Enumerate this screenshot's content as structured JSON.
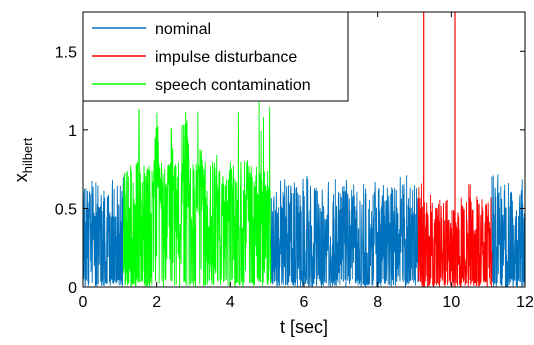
{
  "chart_data": {
    "type": "line",
    "title": "",
    "xlabel": "t [sec]",
    "ylabel": "x",
    "ylabel_subscript": "hilbert",
    "xlim": [
      0,
      12
    ],
    "ylim": [
      0,
      1.75
    ],
    "xticks": [
      0,
      2,
      4,
      6,
      8,
      10,
      12
    ],
    "yticks": [
      0,
      0.5,
      1,
      1.5
    ],
    "grid": false,
    "legend_position": "top-left",
    "series": [
      {
        "name": "nominal",
        "color": "#0072BD",
        "segments": [
          [
            0,
            1.1
          ],
          [
            5.1,
            9.1
          ],
          [
            11.1,
            12
          ]
        ],
        "typical_max": 0.65,
        "peak_max": 0.72
      },
      {
        "name": "impulse disturbance",
        "color": "#FF0000",
        "segments": [
          [
            9.1,
            11.1
          ]
        ],
        "typical_max": 0.58,
        "peak_max": 0.66,
        "impulses": [
          {
            "t": 9.25,
            "value": 1.75
          },
          {
            "t": 10.1,
            "value": 1.75
          }
        ]
      },
      {
        "name": "speech contamination",
        "color": "#00FF00",
        "segments": [
          [
            1.1,
            5.1
          ]
        ],
        "typical_max": 0.8,
        "peak_max": 1.22,
        "peaks": [
          {
            "t": 1.5,
            "value": 0.95
          },
          {
            "t": 2.0,
            "value": 1.2
          },
          {
            "t": 2.4,
            "value": 1.12
          },
          {
            "t": 2.8,
            "value": 1.25
          },
          {
            "t": 3.2,
            "value": 1.05
          },
          {
            "t": 3.6,
            "value": 1.0
          },
          {
            "t": 4.0,
            "value": 0.9
          },
          {
            "t": 4.5,
            "value": 0.85
          }
        ]
      }
    ]
  }
}
